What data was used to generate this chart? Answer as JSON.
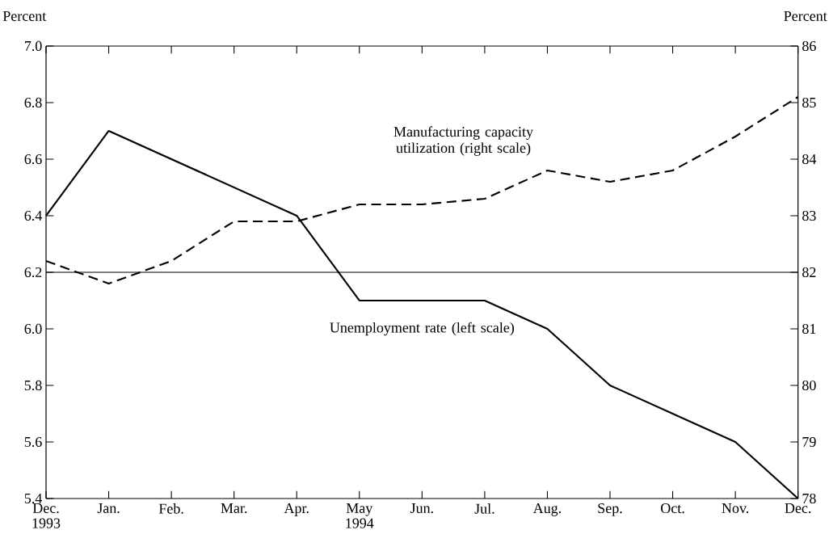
{
  "chart_data": {
    "type": "line",
    "ylabel": "Percent",
    "y2label": "Percent",
    "categories": [
      "Dec. 1993",
      "Jan.",
      "Feb.",
      "Mar.",
      "Apr.",
      "May 1994",
      "Jun.",
      "Jul.",
      "Aug.",
      "Sep.",
      "Oct.",
      "Nov.",
      "Dec."
    ],
    "series": [
      {
        "name": "Unemployment rate (left scale)",
        "color": "#000000",
        "line_style": "solid",
        "values": [
          6.4,
          6.7,
          6.6,
          6.5,
          6.4,
          6.1,
          6.1,
          6.1,
          6.0,
          5.8,
          5.7,
          5.6,
          5.4
        ]
      },
      {
        "name": "Manufacturing capacity utilization (right scale)",
        "color": "#000000",
        "line_style": "dashed",
        "axis": "y2",
        "values": [
          82.2,
          81.8,
          82.2,
          82.9,
          82.9,
          83.2,
          83.2,
          83.3,
          83.8,
          83.6,
          83.8,
          84.4,
          85.1
        ]
      }
    ],
    "ylim": [
      5.4,
      7.0
    ],
    "yticks": [
      {
        "value": 5.4,
        "label": "5.4"
      },
      {
        "value": 5.6,
        "label": "5.6"
      },
      {
        "value": 5.8,
        "label": "5.8"
      },
      {
        "value": 6.0,
        "label": "6.0"
      },
      {
        "value": 6.2,
        "label": "6.2"
      },
      {
        "value": 6.4,
        "label": "6.4"
      },
      {
        "value": 6.6,
        "label": "6.6"
      },
      {
        "value": 6.8,
        "label": "6.8"
      },
      {
        "value": 7.0,
        "label": "7.0"
      }
    ],
    "y2lim": [
      78,
      86
    ],
    "y2ticks": [
      78,
      79,
      80,
      81,
      82,
      83,
      84,
      85,
      86
    ],
    "ref_lines": [
      {
        "axis": "y",
        "value": 6.2,
        "color": "#000000"
      }
    ],
    "grid": false,
    "marker": "none"
  }
}
